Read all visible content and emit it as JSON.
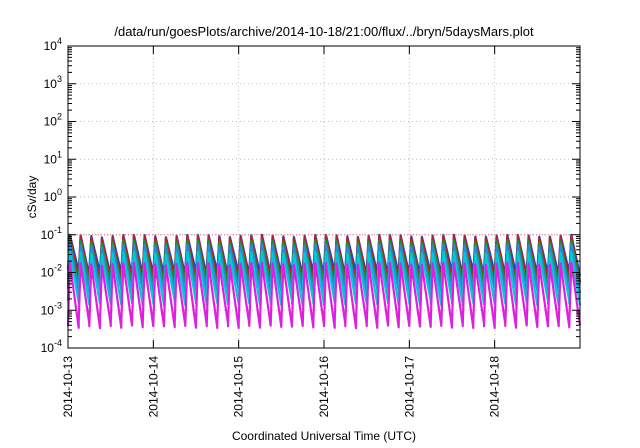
{
  "chart_data": {
    "type": "line",
    "title": "/data/run/goesPlots/archive/2014-10-18/21:00/flux/../bryn/5daysMars.plot",
    "xlabel": "Coordinated Universal Time (UTC)",
    "ylabel": "cSv/day",
    "y_scale": "log",
    "ylim": [
      0.0001,
      10000
    ],
    "y_ticks": [
      {
        "base": "10",
        "exp": "-4"
      },
      {
        "base": "10",
        "exp": "-3"
      },
      {
        "base": "10",
        "exp": "-2"
      },
      {
        "base": "10",
        "exp": "-1"
      },
      {
        "base": "10",
        "exp": "0"
      },
      {
        "base": "10",
        "exp": "1"
      },
      {
        "base": "10",
        "exp": "2"
      },
      {
        "base": "10",
        "exp": "3"
      },
      {
        "base": "10",
        "exp": "4"
      }
    ],
    "xlim": [
      "2014-10-13",
      "2014-10-19"
    ],
    "x_ticks": [
      "2014-10-13",
      "2014-10-14",
      "2014-10-15",
      "2014-10-16",
      "2014-10-17",
      "2014-10-18"
    ],
    "grid": true,
    "reference_line": {
      "y": 0.1,
      "color": "#ff6060"
    },
    "periods_per_day": 8,
    "series": [
      {
        "color": "#2b3fd6",
        "peak": 0.1,
        "trough": 0.012
      },
      {
        "color": "#c0201b",
        "peak": 0.09,
        "trough": 0.008
      },
      {
        "color": "#1d8f2c",
        "peak": 0.07,
        "trough": 0.006
      },
      {
        "color": "#2a8ad6",
        "peak": 0.055,
        "trough": 0.004
      },
      {
        "color": "#00c8d6",
        "peak": 0.035,
        "trough": 0.002
      },
      {
        "color": "#e01ee0",
        "peak": 0.018,
        "trough": 0.0005
      }
    ]
  }
}
